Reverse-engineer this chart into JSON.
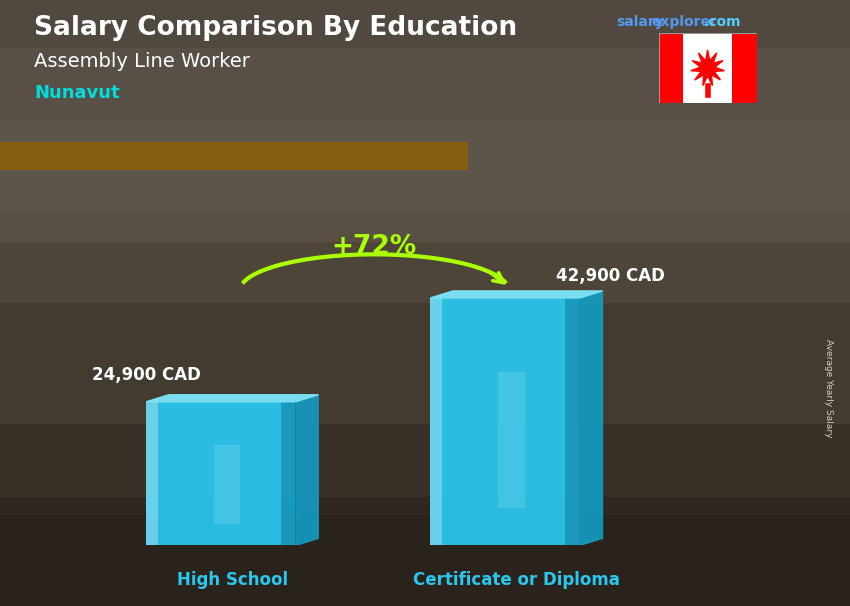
{
  "title1": "Salary Comparison By Education",
  "title2": "Assembly Line Worker",
  "title3": "Nunavut",
  "categories": [
    "High School",
    "Certificate or Diploma"
  ],
  "values": [
    24900,
    42900
  ],
  "value_labels": [
    "24,900 CAD",
    "42,900 CAD"
  ],
  "percent_change": "+72%",
  "bar_color_face": "#29C8F0",
  "bar_color_side": "#1499BF",
  "bar_color_top": "#7DE3F7",
  "ylabel": "Average Yearly Salary",
  "category_color": "#29C8F0",
  "percent_color": "#AAFF00",
  "bg_top": "#7a6a55",
  "bg_mid": "#6b5e50",
  "bg_bot": "#4a4035",
  "salary_color": "#4499DD",
  "explorer_color": "#4499DD",
  "com_color": "#44AAFF"
}
